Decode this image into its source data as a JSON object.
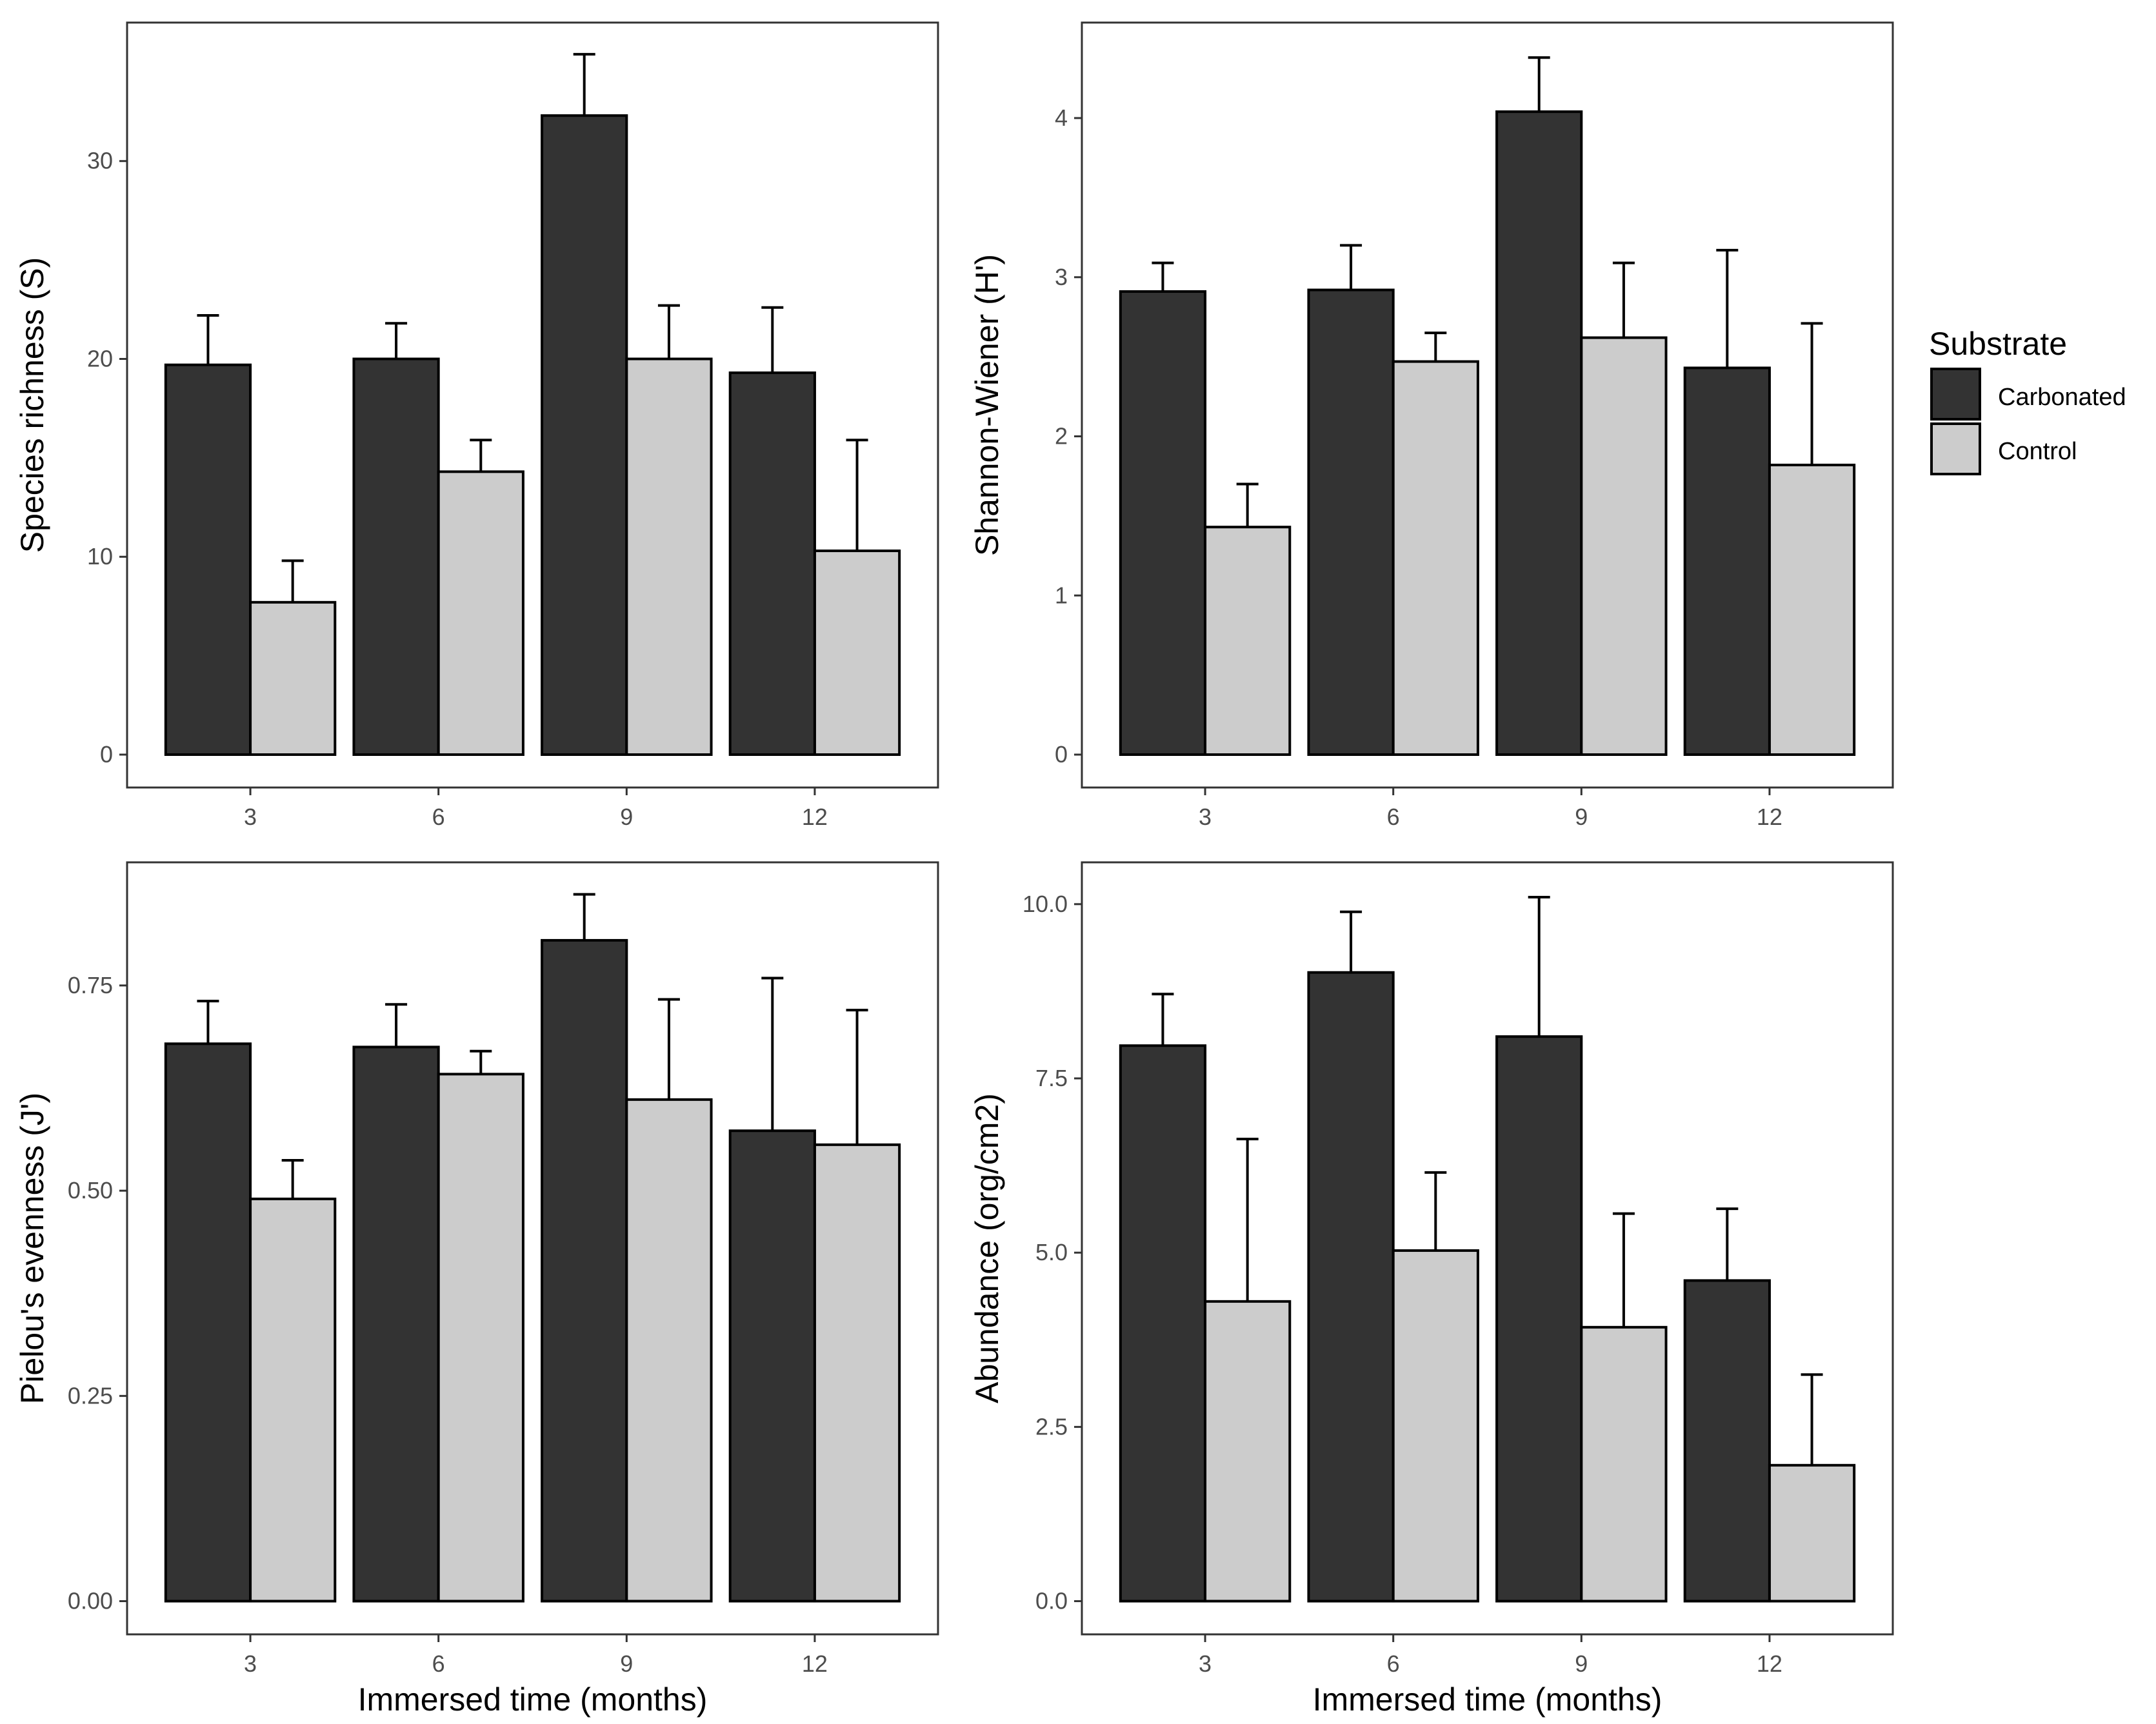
{
  "legend": {
    "title": "Substrate",
    "items": [
      {
        "label": "Carbonated",
        "color": "#333333"
      },
      {
        "label": "Control",
        "color": "#cccccc"
      }
    ]
  },
  "chart_data": [
    {
      "type": "bar",
      "title": "",
      "categories": [
        "3",
        "6",
        "9",
        "12"
      ],
      "xlabel": "Immersed time (months)",
      "ylabel": "Species richness (S)",
      "ylim": [
        0,
        37
      ],
      "yticks": [
        "0",
        "10",
        "20",
        "30"
      ],
      "series": [
        {
          "name": "Carbonated",
          "values": [
            19.7,
            20.0,
            32.3,
            19.3
          ],
          "error": [
            2.5,
            1.8,
            3.1,
            3.3
          ]
        },
        {
          "name": "Control",
          "values": [
            7.7,
            14.3,
            20.0,
            10.3
          ],
          "error": [
            2.1,
            1.6,
            2.7,
            5.6
          ]
        }
      ]
    },
    {
      "type": "bar",
      "title": "",
      "categories": [
        "3",
        "6",
        "9",
        "12"
      ],
      "xlabel": "Immersed time (months)",
      "ylabel": "Shannon-Wiener (H')",
      "ylim": [
        0,
        4.6
      ],
      "yticks": [
        "0",
        "1",
        "2",
        "3",
        "4"
      ],
      "series": [
        {
          "name": "Carbonated",
          "values": [
            2.91,
            2.92,
            4.04,
            2.43
          ],
          "error": [
            0.18,
            0.28,
            0.34,
            0.74
          ]
        },
        {
          "name": "Control",
          "values": [
            1.43,
            2.47,
            2.62,
            1.82
          ],
          "error": [
            0.27,
            0.18,
            0.47,
            0.89
          ]
        }
      ]
    },
    {
      "type": "bar",
      "title": "",
      "categories": [
        "3",
        "6",
        "9",
        "12"
      ],
      "xlabel": "Immersed time (months)",
      "ylabel": "Pielou's evenness (J')",
      "ylim": [
        0,
        0.9
      ],
      "yticks": [
        "0.00",
        "0.25",
        "0.50",
        "0.75"
      ],
      "series": [
        {
          "name": "Carbonated",
          "values": [
            0.679,
            0.675,
            0.805,
            0.573
          ],
          "error": [
            0.052,
            0.052,
            0.056,
            0.186
          ]
        },
        {
          "name": "Control",
          "values": [
            0.49,
            0.642,
            0.611,
            0.556
          ],
          "error": [
            0.047,
            0.028,
            0.122,
            0.164
          ]
        }
      ]
    },
    {
      "type": "bar",
      "title": "",
      "categories": [
        "3",
        "6",
        "9",
        "12"
      ],
      "xlabel": "Immersed time (months)",
      "ylabel": "Abundance (org/cm2)",
      "ylim": [
        0,
        10.6
      ],
      "yticks": [
        "0.0",
        "2.5",
        "5.0",
        "7.5",
        "10.0"
      ],
      "series": [
        {
          "name": "Carbonated",
          "values": [
            7.97,
            9.02,
            8.1,
            4.6
          ],
          "error": [
            0.74,
            0.87,
            2.0,
            1.03
          ]
        },
        {
          "name": "Control",
          "values": [
            4.3,
            5.03,
            3.93,
            1.95
          ],
          "error": [
            2.33,
            1.12,
            1.63,
            1.3
          ]
        }
      ]
    }
  ]
}
